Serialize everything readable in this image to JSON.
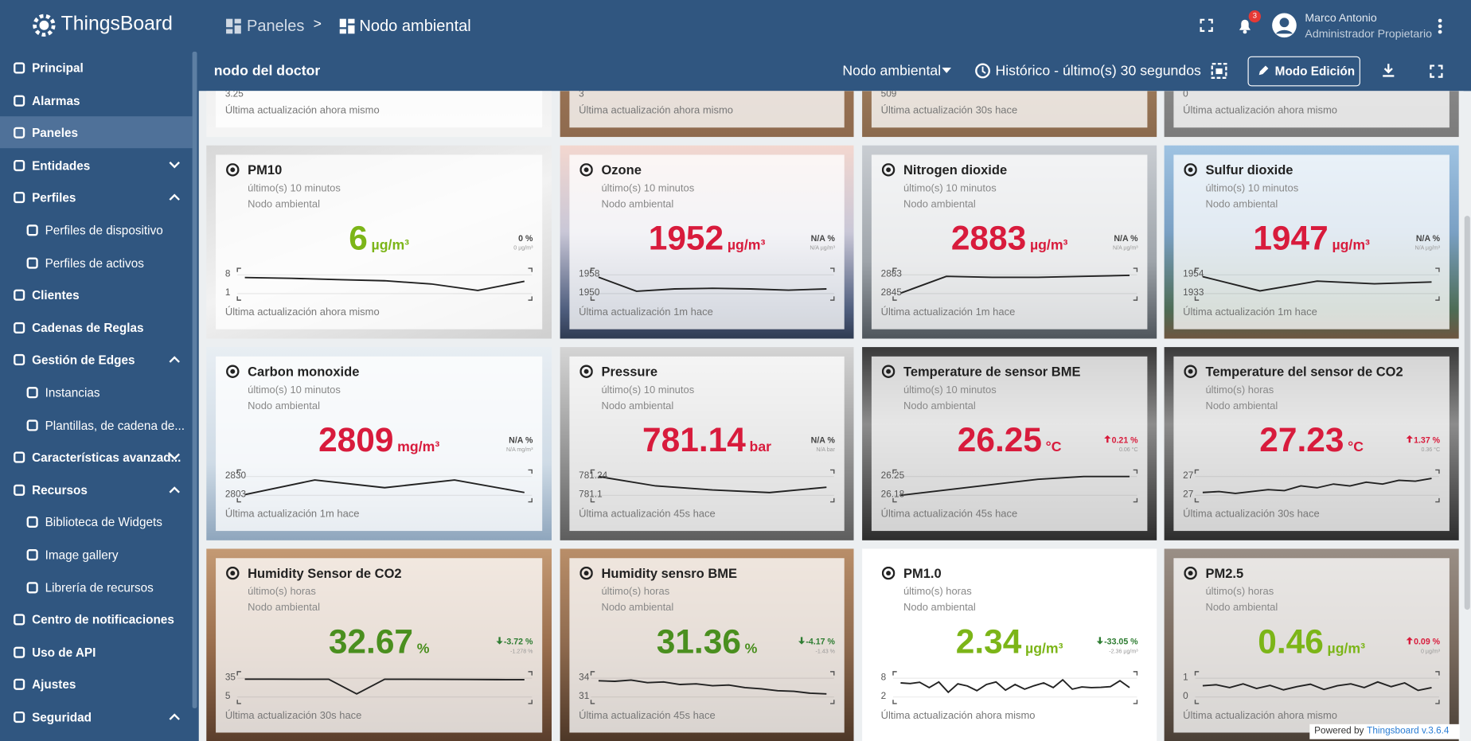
{
  "header": {
    "brand": "ThingsBoard",
    "breadcrumb": [
      "Paneles",
      ">",
      "Nodo ambiental"
    ],
    "notifications": "3",
    "user_name": "Marco Antonio",
    "user_role": "Administrador Propietario"
  },
  "toolbar": {
    "dashboard_title": "nodo del doctor",
    "state": "Nodo ambiental",
    "timewindow": "Histórico - último(s) 30 segundos",
    "edit_button": "Modo Edición"
  },
  "sidebar": [
    {
      "label": "Principal",
      "level": 0
    },
    {
      "label": "Alarmas",
      "level": 0
    },
    {
      "label": "Paneles",
      "level": 0,
      "selected": true
    },
    {
      "label": "Entidades",
      "level": 0,
      "chevron": "down"
    },
    {
      "label": "Perfiles",
      "level": 0,
      "chevron": "up"
    },
    {
      "label": "Perfiles de dispositivo",
      "level": 1
    },
    {
      "label": "Perfiles de activos",
      "level": 1
    },
    {
      "label": "Clientes",
      "level": 0
    },
    {
      "label": "Cadenas de Reglas",
      "level": 0
    },
    {
      "label": "Gestión de Edges",
      "level": 0,
      "chevron": "up"
    },
    {
      "label": "Instancias",
      "level": 1
    },
    {
      "label": "Plantillas, de cadena de...",
      "level": 1
    },
    {
      "label": "Características avanzad...",
      "level": 0,
      "chevron": "down"
    },
    {
      "label": "Recursos",
      "level": 0,
      "chevron": "up"
    },
    {
      "label": "Biblioteca de Widgets",
      "level": 1
    },
    {
      "label": "Image gallery",
      "level": 1
    },
    {
      "label": "Librería de recursos",
      "level": 1
    },
    {
      "label": "Centro de notificaciones",
      "level": 0
    },
    {
      "label": "Uso de API",
      "level": 0
    },
    {
      "label": "Ajustes",
      "level": 0
    },
    {
      "label": "Seguridad",
      "level": 0,
      "chevron": "up"
    }
  ],
  "top_row": [
    {
      "axis_label": "3.25",
      "updated": "Última actualización ahora mismo"
    },
    {
      "axis_label": "3",
      "updated": "Última actualización ahora mismo"
    },
    {
      "axis_label": "509",
      "updated": "Última actualización 30s hace"
    },
    {
      "axis_label": "0",
      "updated": "Última actualización ahora mismo"
    }
  ],
  "widgets": [
    {
      "title": "PM10",
      "interval": "último(s) 10 minutos",
      "device": "Nodo ambiental",
      "value": 6,
      "unit": "µg/m³",
      "color": "#7cb518",
      "change": "0 %",
      "change_abs": "0 µg/m³",
      "trend": null,
      "ylim": [
        1,
        8
      ],
      "yticks": [
        8,
        1
      ],
      "points": [
        7,
        6.7,
        6.2,
        5.8,
        4.6,
        2.2,
        5.6
      ],
      "updated": "Última actualización ahora mismo"
    },
    {
      "title": "Ozone",
      "interval": "último(s) 10 minutos",
      "device": "Nodo ambiental",
      "value": 1952,
      "unit": "µg/m³",
      "color": "#d81b3c",
      "change": "N/A %",
      "change_abs": "N/A µg/m³",
      "trend": null,
      "ylim": [
        1950,
        1958
      ],
      "yticks": [
        1958,
        1950
      ],
      "points": [
        1957,
        1951,
        1952,
        1952.3,
        1952,
        1951.5,
        1952
      ],
      "updated": "Última actualización 1m hace"
    },
    {
      "title": "Nitrogen dioxide",
      "interval": "último(s) 10 minutos",
      "device": "Nodo ambiental",
      "value": 2883,
      "unit": "µg/m³",
      "color": "#d81b3c",
      "change": "N/A %",
      "change_abs": "N/A µg/m³",
      "trend": null,
      "ylim": [
        2845,
        2883
      ],
      "yticks": [
        2883,
        2845
      ],
      "points": [
        2846,
        2880,
        2878,
        2878,
        2880,
        2882
      ],
      "updated": "Última actualización 1m hace"
    },
    {
      "title": "Sulfur dioxide",
      "interval": "último(s) 10 minutos",
      "device": "Nodo ambiental",
      "value": 1947,
      "unit": "µg/m³",
      "color": "#d81b3c",
      "change": "N/A %",
      "change_abs": "N/A µg/m³",
      "trend": null,
      "ylim": [
        1933,
        1954
      ],
      "yticks": [
        1954,
        1933
      ],
      "points": [
        1952,
        1936,
        1947,
        1944,
        1946
      ],
      "updated": "Última actualización 1m hace"
    },
    {
      "title": "Carbon monoxide",
      "interval": "último(s) 10 minutos",
      "device": "Nodo ambiental",
      "value": 2809,
      "unit": "mg/m³",
      "color": "#d81b3c",
      "change": "N/A %",
      "change_abs": "N/A mg/m³",
      "trend": null,
      "ylim": [
        2803,
        2830
      ],
      "yticks": [
        2830,
        2803
      ],
      "points": [
        2804,
        2825,
        2814,
        2825,
        2807
      ],
      "updated": "Última actualización 1m hace"
    },
    {
      "title": "Pressure",
      "interval": "último(s) 10 minutos",
      "device": "Nodo ambiental",
      "value": 781.14,
      "unit": "bar",
      "color": "#d81b3c",
      "change": "N/A %",
      "change_abs": "N/A bar",
      "trend": null,
      "ylim": [
        781.1,
        781.24
      ],
      "yticks": [
        781.24,
        781.1
      ],
      "points": [
        781.24,
        781.17,
        781.14,
        781.12,
        781.16
      ],
      "updated": "Última actualización 45s hace"
    },
    {
      "title": "Temperature de sensor BME",
      "interval": "último(s) 10 minutos",
      "device": "Nodo ambiental",
      "value": 26.25,
      "unit": "°C",
      "color": "#d81b3c",
      "change": "0.21 %",
      "change_abs": "0.06 °C",
      "trend": "up",
      "ylim": [
        26.18,
        26.25
      ],
      "yticks": [
        26.25,
        26.18
      ],
      "points": [
        26.18,
        26.2,
        26.22,
        26.24,
        26.25,
        26.25
      ],
      "updated": "Última actualización 45s hace"
    },
    {
      "title": "Temperature del sensor de CO2",
      "interval": "último(s) horas",
      "device": "Nodo ambiental",
      "value": 27.23,
      "unit": "°C",
      "color": "#d81b3c",
      "change": "1.37 %",
      "change_abs": "0.36 °C",
      "trend": "up",
      "ylim": [
        27.1,
        27.3
      ],
      "yticks": [
        {
          "value": 27.3,
          "label": "27"
        },
        {
          "value": 27.1,
          "label": "27"
        }
      ],
      "points": [
        27.13,
        27.14,
        27.12,
        27.14,
        27.16,
        27.15,
        27.2,
        27.18,
        27.22,
        27.2,
        27.24,
        27.22,
        27.26,
        27.25,
        27.28
      ],
      "updated": "Última actualización 30s hace"
    },
    {
      "title": "Humidity Sensor de CO2",
      "interval": "último(s) horas",
      "device": "Nodo ambiental",
      "value": 32.67,
      "unit": "%",
      "color": "#4a8f1f",
      "change": "-3.72 %",
      "change_abs": "-1.278 %",
      "trend": "down",
      "ylim": [
        5,
        35
      ],
      "yticks": [
        35,
        5
      ],
      "points": [
        33.5,
        33.5,
        33.4,
        33.3,
        10,
        33.4,
        33.3,
        33.2,
        33,
        32.8,
        32.6
      ],
      "updated": "Última actualización 30s hace"
    },
    {
      "title": "Humidity sensro BME",
      "interval": "último(s) horas",
      "device": "Nodo ambiental",
      "value": 31.36,
      "unit": "%",
      "color": "#4a8f1f",
      "change": "-4.17 %",
      "change_abs": "-1.43 %",
      "trend": "down",
      "ylim": [
        31,
        34
      ],
      "yticks": [
        34,
        31
      ],
      "points": [
        33.6,
        33.5,
        33.7,
        33.3,
        33.4,
        33,
        33.1,
        32.8,
        32.9,
        32.5,
        32.3,
        32,
        31.9,
        31.6,
        31.5
      ],
      "updated": "Última actualización 45s hace"
    },
    {
      "title": "PM1.0",
      "interval": "último(s) horas",
      "device": "Nodo ambiental",
      "value": 2.34,
      "unit": "µg/m³",
      "color": "#7cb518",
      "change": "-33.05 %",
      "change_abs": "-2.36 µg/m³",
      "trend": "down",
      "ylim": [
        2,
        8
      ],
      "yticks": [
        8,
        2
      ],
      "points": [
        6.5,
        6.3,
        6.7,
        5,
        6.8,
        3.5,
        6.2,
        5.5,
        4,
        6,
        6.8,
        4.2,
        6,
        4.5,
        5.6,
        6.5,
        5,
        7.5,
        4.5,
        5.2,
        5,
        5.1,
        5.3,
        7.2,
        5
      ],
      "updated": "Última actualización ahora mismo"
    },
    {
      "title": "PM2.5",
      "interval": "último(s) horas",
      "device": "Nodo ambiental",
      "value": 0.46,
      "unit": "µg/m³",
      "color": "#7cb518",
      "change": "0.09 %",
      "change_abs": "0 µg/m³",
      "trend": "up",
      "ylim": [
        0,
        1
      ],
      "yticks": [
        1,
        0
      ],
      "points": [
        0.6,
        0.65,
        0.5,
        0.7,
        0.45,
        0.62,
        0.38,
        0.55,
        0.68,
        0.4,
        0.6,
        0.7,
        0.5,
        0.8,
        0.55,
        0.75,
        0.35,
        0.5
      ],
      "updated": "Última actualización ahora mismo"
    }
  ],
  "footer": {
    "powered_by": "Powered by",
    "version": "Thingsboard v.3.6.4"
  }
}
